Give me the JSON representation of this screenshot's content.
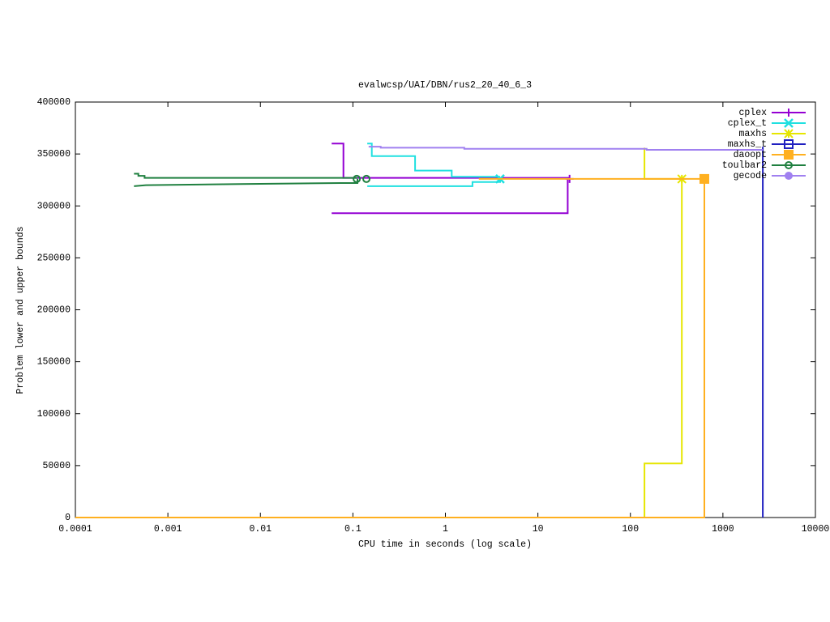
{
  "chart_data": {
    "type": "line",
    "title": "evalwcsp/UAI/DBN/rus2_20_40_6_3",
    "xlabel": "CPU time in seconds (log scale)",
    "ylabel": "Problem lower and upper bounds",
    "log_x": true,
    "grid": false,
    "legend": "top-right",
    "xlim": [
      0.0001,
      10000
    ],
    "xticks": [
      0.0001,
      0.001,
      0.01,
      0.1,
      1,
      10,
      100,
      1000,
      10000
    ],
    "ylim": [
      0,
      400000
    ],
    "yticks": [
      0,
      50000,
      100000,
      150000,
      200000,
      250000,
      300000,
      350000,
      400000
    ],
    "series": [
      {
        "name": "cplex",
        "color": "#9400d3",
        "marker": "plus",
        "x": [
          0.059,
          0.079,
          0.079,
          22,
          null,
          0.059,
          21,
          21
        ],
        "values": [
          360000,
          360000,
          327000,
          327000,
          null,
          293000,
          293000,
          326000
        ],
        "marker_x": [
          22
        ],
        "marker_y": [
          326000
        ]
      },
      {
        "name": "cplex_t",
        "color": "#20e0e0",
        "marker": "cross",
        "x": [
          0.143,
          0.16,
          0.16,
          0.47,
          0.47,
          1.17,
          1.17,
          3.9,
          null,
          0.143,
          1.96,
          1.96,
          3.9,
          3.9
        ],
        "values": [
          360000,
          360000,
          348000,
          348000,
          334000,
          334000,
          328000,
          328000,
          null,
          319000,
          319000,
          323000,
          323000,
          326000
        ],
        "marker_x": [
          3.9
        ],
        "marker_y": [
          326000
        ]
      },
      {
        "name": "maxhs",
        "color": "#e6e600",
        "marker": "star",
        "x": [
          0.0001,
          142,
          142,
          360,
          360,
          null,
          142,
          142,
          360
        ],
        "values": [
          0,
          0,
          52000,
          52000,
          326000,
          null,
          356000,
          326000,
          326000
        ],
        "marker_x": [
          360
        ],
        "marker_y": [
          326000
        ]
      },
      {
        "name": "maxhs_t",
        "color": "#2020c0",
        "marker": "square-open",
        "x": [
          2700,
          2700
        ],
        "values": [
          0,
          357000
        ],
        "marker_x": [],
        "marker_y": []
      },
      {
        "name": "daoopt",
        "color": "#ffb020",
        "marker": "square",
        "x": [
          2.3,
          630,
          null,
          0.0001,
          630,
          630
        ],
        "values": [
          326000,
          326000,
          null,
          0,
          0,
          326000
        ],
        "marker_x": [
          630
        ],
        "marker_y": [
          326000
        ]
      },
      {
        "name": "toulbar2",
        "color": "#208040",
        "marker": "circle-open",
        "x": [
          0.00043,
          0.00048,
          0.00048,
          0.00056,
          0.00056,
          0.112,
          null,
          0.00043,
          0.00058,
          0.0061,
          0.073,
          0.112,
          0.112
        ],
        "values": [
          331000,
          331000,
          329000,
          329000,
          327000,
          327000,
          null,
          319000,
          320000,
          321000,
          322000,
          322000,
          326000
        ],
        "marker_x": [
          0.11,
          0.14
        ],
        "marker_y": [
          326000,
          326000
        ]
      },
      {
        "name": "gecode",
        "color": "#a080f0",
        "marker": "circle",
        "x": [
          0.148,
          0.2,
          0.2,
          1.6,
          1.6,
          150,
          150,
          2700
        ],
        "values": [
          357000,
          357000,
          356000,
          356000,
          355000,
          355000,
          354000,
          354000
        ],
        "marker_x": [],
        "marker_y": []
      }
    ]
  }
}
